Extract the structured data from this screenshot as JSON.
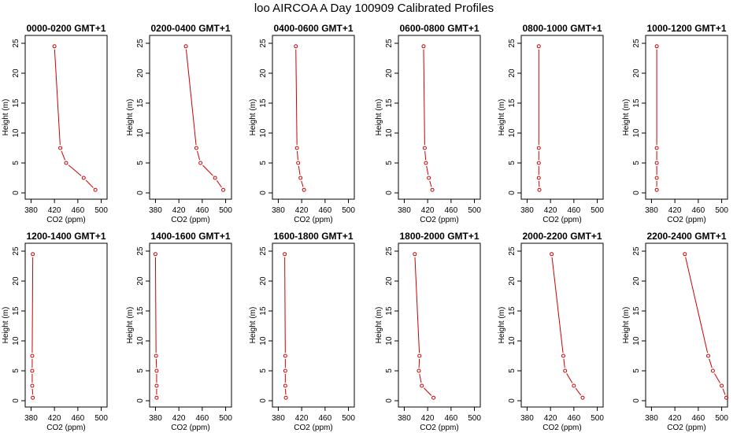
{
  "figure_title": "loo AIRCOA A  Day 100909  Calibrated Profiles",
  "chart_data": [
    {
      "type": "line",
      "title": "0000-0200 GMT+1",
      "xlabel": "CO2 (ppm)",
      "ylabel": "Height (m)",
      "xlim": [
        370,
        510
      ],
      "ylim": [
        0,
        25
      ],
      "xticks": [
        "380",
        "420",
        "460",
        "500"
      ],
      "yticks": [
        "0",
        "5",
        "10",
        "15",
        "20",
        "25"
      ],
      "series": [
        {
          "color": "#cc0000",
          "x": [
            490,
            470,
            440,
            430,
            420
          ],
          "y": [
            0.5,
            2.5,
            5,
            7.5,
            24.5
          ]
        }
      ]
    },
    {
      "type": "line",
      "title": "0200-0400 GMT+1",
      "xlabel": "CO2 (ppm)",
      "ylabel": "Height (m)",
      "xlim": [
        370,
        510
      ],
      "ylim": [
        0,
        25
      ],
      "xticks": [
        "380",
        "420",
        "460",
        "500"
      ],
      "yticks": [
        "0",
        "5",
        "10",
        "15",
        "20",
        "25"
      ],
      "series": [
        {
          "color": "#cc0000",
          "x": [
            496,
            482,
            457,
            450,
            432
          ],
          "y": [
            0.5,
            2.5,
            5,
            7.5,
            24.5
          ]
        }
      ]
    },
    {
      "type": "line",
      "title": "0400-0600 GMT+1",
      "xlabel": "CO2 (ppm)",
      "ylabel": "Height (m)",
      "xlim": [
        370,
        510
      ],
      "ylim": [
        0,
        25
      ],
      "xticks": [
        "380",
        "420",
        "460",
        "500"
      ],
      "yticks": [
        "0",
        "5",
        "10",
        "15",
        "20",
        "25"
      ],
      "series": [
        {
          "color": "#cc0000",
          "x": [
            424,
            418,
            414,
            412,
            410
          ],
          "y": [
            0.5,
            2.5,
            5,
            7.5,
            24.5
          ]
        }
      ]
    },
    {
      "type": "line",
      "title": "0600-0800 GMT+1",
      "xlabel": "CO2 (ppm)",
      "ylabel": "Height (m)",
      "xlim": [
        370,
        510
      ],
      "ylim": [
        0,
        25
      ],
      "xticks": [
        "380",
        "420",
        "460",
        "500"
      ],
      "yticks": [
        "0",
        "5",
        "10",
        "15",
        "20",
        "25"
      ],
      "series": [
        {
          "color": "#cc0000",
          "x": [
            428,
            422,
            417,
            415,
            413
          ],
          "y": [
            0.5,
            2.5,
            5,
            7.5,
            24.5
          ]
        }
      ]
    },
    {
      "type": "line",
      "title": "0800-1000 GMT+1",
      "xlabel": "CO2 (ppm)",
      "ylabel": "Height (m)",
      "xlim": [
        370,
        510
      ],
      "ylim": [
        0,
        25
      ],
      "xticks": [
        "380",
        "420",
        "460",
        "500"
      ],
      "yticks": [
        "0",
        "5",
        "10",
        "15",
        "20",
        "25"
      ],
      "series": [
        {
          "color": "#cc0000",
          "x": [
            401,
            400,
            400,
            400,
            400
          ],
          "y": [
            0.5,
            2.5,
            5,
            7.5,
            24.5
          ]
        }
      ]
    },
    {
      "type": "line",
      "title": "1000-1200 GMT+1",
      "xlabel": "CO2 (ppm)",
      "ylabel": "Height (m)",
      "xlim": [
        370,
        510
      ],
      "ylim": [
        0,
        25
      ],
      "xticks": [
        "380",
        "420",
        "460",
        "500"
      ],
      "yticks": [
        "0",
        "5",
        "10",
        "15",
        "20",
        "25"
      ],
      "series": [
        {
          "color": "#cc0000",
          "x": [
            389,
            389,
            389,
            389,
            389
          ],
          "y": [
            0.5,
            2.5,
            5,
            7.5,
            24.5
          ]
        }
      ]
    },
    {
      "type": "line",
      "title": "1200-1400 GMT+1",
      "xlabel": "CO2 (ppm)",
      "ylabel": "Height (m)",
      "xlim": [
        370,
        510
      ],
      "ylim": [
        0,
        25
      ],
      "xticks": [
        "380",
        "420",
        "460",
        "500"
      ],
      "yticks": [
        "0",
        "5",
        "10",
        "15",
        "20",
        "25"
      ],
      "series": [
        {
          "color": "#cc0000",
          "x": [
            383,
            382,
            382,
            382,
            383
          ],
          "y": [
            0.5,
            2.5,
            5,
            7.5,
            24.5
          ]
        }
      ]
    },
    {
      "type": "line",
      "title": "1400-1600 GMT+1",
      "xlabel": "CO2 (ppm)",
      "ylabel": "Height (m)",
      "xlim": [
        370,
        510
      ],
      "ylim": [
        0,
        25
      ],
      "xticks": [
        "380",
        "420",
        "460",
        "500"
      ],
      "yticks": [
        "0",
        "5",
        "10",
        "15",
        "20",
        "25"
      ],
      "series": [
        {
          "color": "#cc0000",
          "x": [
            382,
            382,
            382,
            381,
            380
          ],
          "y": [
            0.5,
            2.5,
            5,
            7.5,
            24.5
          ]
        }
      ]
    },
    {
      "type": "line",
      "title": "1600-1800 GMT+1",
      "xlabel": "CO2 (ppm)",
      "ylabel": "Height (m)",
      "xlim": [
        370,
        510
      ],
      "ylim": [
        0,
        25
      ],
      "xticks": [
        "380",
        "420",
        "460",
        "500"
      ],
      "yticks": [
        "0",
        "5",
        "10",
        "15",
        "20",
        "25"
      ],
      "series": [
        {
          "color": "#cc0000",
          "x": [
            393,
            392,
            392,
            392,
            391
          ],
          "y": [
            0.5,
            2.5,
            5,
            7.5,
            24.5
          ]
        }
      ]
    },
    {
      "type": "line",
      "title": "1800-2000 GMT+1",
      "xlabel": "CO2 (ppm)",
      "ylabel": "Height (m)",
      "xlim": [
        370,
        510
      ],
      "ylim": [
        0,
        25
      ],
      "xticks": [
        "380",
        "420",
        "460",
        "500"
      ],
      "yticks": [
        "0",
        "5",
        "10",
        "15",
        "20",
        "25"
      ],
      "series": [
        {
          "color": "#cc0000",
          "x": [
            430,
            410,
            405,
            406,
            398
          ],
          "y": [
            0.5,
            2.5,
            5,
            7.5,
            24.5
          ]
        }
      ]
    },
    {
      "type": "line",
      "title": "2000-2200 GMT+1",
      "xlabel": "CO2 (ppm)",
      "ylabel": "Height (m)",
      "xlim": [
        370,
        510
      ],
      "ylim": [
        0,
        25
      ],
      "xticks": [
        "380",
        "420",
        "460",
        "500"
      ],
      "yticks": [
        "0",
        "5",
        "10",
        "15",
        "20",
        "25"
      ],
      "series": [
        {
          "color": "#cc0000",
          "x": [
            475,
            460,
            445,
            442,
            422
          ],
          "y": [
            0.5,
            2.5,
            5,
            7.5,
            24.5
          ]
        }
      ]
    },
    {
      "type": "line",
      "title": "2200-2400 GMT+1",
      "xlabel": "CO2 (ppm)",
      "ylabel": "Height (m)",
      "xlim": [
        370,
        510
      ],
      "ylim": [
        0,
        25
      ],
      "xticks": [
        "380",
        "420",
        "460",
        "500"
      ],
      "yticks": [
        "0",
        "5",
        "10",
        "15",
        "20",
        "25"
      ],
      "series": [
        {
          "color": "#cc0000",
          "x": [
            508,
            500,
            485,
            477,
            437
          ],
          "y": [
            0.5,
            2.5,
            5,
            7.5,
            24.5
          ]
        }
      ]
    }
  ]
}
